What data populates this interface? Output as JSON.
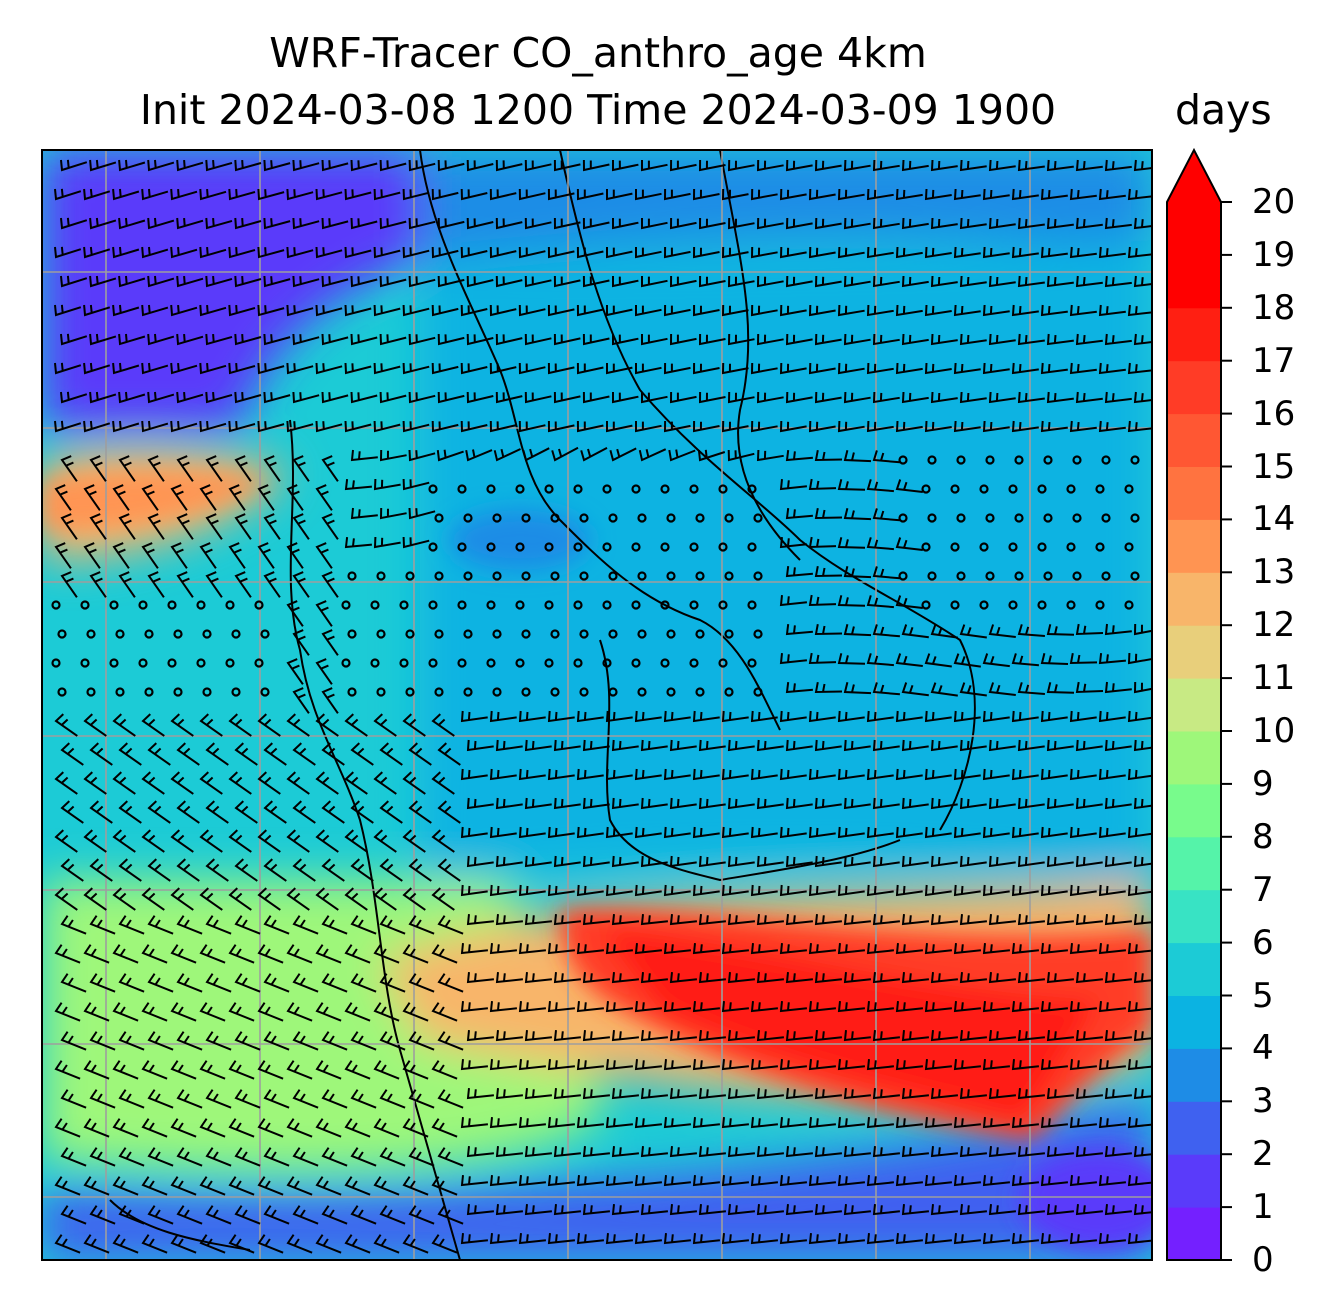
{
  "title": {
    "line1": "WRF-Tracer CO_anthro_age 4km",
    "line2": "Init 2024-03-08 1200 Time 2024-03-09 1900"
  },
  "colorbar": {
    "units": "days",
    "min": 0,
    "max": 20,
    "extend": "max",
    "ticks": [
      "0",
      "1",
      "2",
      "3",
      "4",
      "5",
      "6",
      "7",
      "8",
      "9",
      "10",
      "11",
      "12",
      "13",
      "14",
      "15",
      "16",
      "17",
      "18",
      "19",
      "20"
    ],
    "colors": [
      "#7420ff",
      "#5a3bfa",
      "#3f61f0",
      "#1e8ce6",
      "#0bb3e2",
      "#1ccbd6",
      "#38e3c4",
      "#55f3a9",
      "#78fb8c",
      "#9ef77a",
      "#c8ea84",
      "#e8cf7b",
      "#f8b56a",
      "#ff9452",
      "#ff7340",
      "#ff5733",
      "#ff3c26",
      "#ff1f12",
      "#ff0000"
    ],
    "extend_color": "#ff0000"
  },
  "map": {
    "field": "CO_anthro_age",
    "gridlines": true,
    "wind_barbs": true,
    "coastlines": true
  }
}
